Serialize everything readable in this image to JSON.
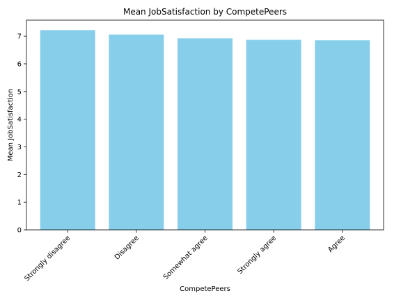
{
  "chart_data": {
    "type": "bar",
    "title": "Mean JobSatisfaction by CompetePeers",
    "xlabel": "CompetePeers",
    "ylabel": "Mean JobSatisfaction",
    "categories": [
      "Strongly disagree",
      "Disagree",
      "Somewhat agree",
      "Strongly agree",
      "Agree"
    ],
    "values": [
      7.22,
      7.06,
      6.92,
      6.87,
      6.85
    ],
    "ylim": [
      0,
      7.58
    ],
    "yticks": [
      0,
      1,
      2,
      3,
      4,
      5,
      6,
      7
    ],
    "bar_color": "#87ceeb",
    "grid": false,
    "legend": "none"
  }
}
